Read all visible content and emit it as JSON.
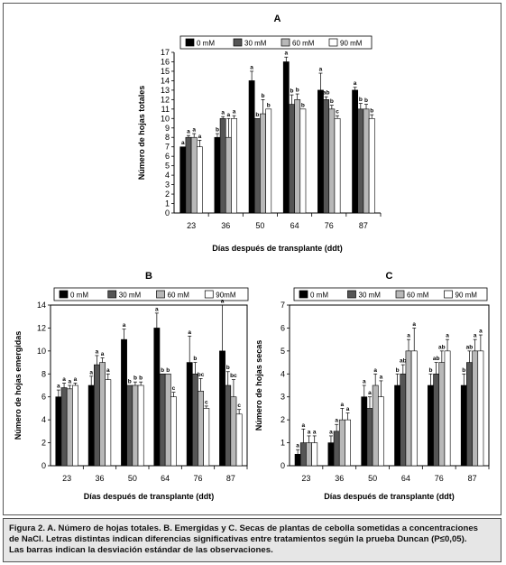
{
  "colors": {
    "s0": "#000000",
    "s1": "#555555",
    "s2": "#b8b8b8",
    "s3": "#ffffff",
    "axis": "#000000",
    "caption_bg": "#e6e6e6"
  },
  "caption": {
    "line1": "Figura 2.  A. Número de hojas totales. B. Emergidas y C. Secas de plantas de cebolla sometidas a concentraciones",
    "line2": "de NaCl. Letras distintas indican diferencias significativas entre tratamientos según la prueba Duncan (P≤0,05).",
    "line3": "Las barras indican la desviación estándar de las observaciones."
  },
  "chart_data": [
    {
      "panel": "A",
      "type": "bar",
      "xlabel": "Días después de transplante (ddt)",
      "ylabel": "Número de hojas totales",
      "categories": [
        "23",
        "36",
        "50",
        "64",
        "76",
        "87"
      ],
      "ylim": [
        0,
        17
      ],
      "yticks": [
        0,
        1,
        2,
        3,
        4,
        5,
        6,
        7,
        8,
        9,
        10,
        11,
        12,
        13,
        14,
        15,
        16,
        17
      ],
      "legend_position": "top",
      "series": [
        {
          "name": "0 mM",
          "values": [
            7,
            8,
            14,
            16,
            13,
            13
          ],
          "errors": [
            0,
            0.4,
            1,
            0.5,
            1.8,
            0.3
          ],
          "letters": [
            "a",
            "b",
            "a",
            "a",
            "a",
            "a"
          ]
        },
        {
          "name": "30 mM",
          "values": [
            8,
            10,
            10,
            11.5,
            12,
            11
          ],
          "errors": [
            0.2,
            0.2,
            0,
            1,
            0.3,
            0.6
          ],
          "letters": [
            "a",
            "a",
            "b",
            "b",
            "ab",
            "b"
          ]
        },
        {
          "name": "60 mM",
          "values": [
            8,
            8,
            10.5,
            12,
            11,
            11
          ],
          "errors": [
            0.4,
            2,
            1.5,
            0.6,
            0.4,
            0.5
          ],
          "letters": [
            "a",
            "a",
            "b",
            "b",
            "b",
            "b"
          ]
        },
        {
          "name": "90 mM",
          "values": [
            7,
            10,
            11,
            11,
            10,
            10
          ],
          "errors": [
            0.7,
            0.3,
            0,
            0,
            0.3,
            0.4
          ],
          "letters": [
            "a",
            "a",
            "b",
            "b",
            "c",
            "b"
          ]
        }
      ]
    },
    {
      "panel": "B",
      "type": "bar",
      "xlabel": "Días después de transplante (ddt)",
      "ylabel": "Número de hojas emergidas",
      "categories": [
        "23",
        "36",
        "50",
        "64",
        "76",
        "87"
      ],
      "ylim": [
        0,
        14
      ],
      "yticks": [
        0,
        2,
        4,
        6,
        8,
        10,
        12,
        14
      ],
      "legend_position": "top",
      "series": [
        {
          "name": "0 mM",
          "values": [
            6,
            7,
            11,
            12,
            9,
            10
          ],
          "errors": [
            0.6,
            0.8,
            0.9,
            1.3,
            2.3,
            4
          ],
          "letters": [
            "a",
            "a",
            "a",
            "a",
            "a",
            "a"
          ]
        },
        {
          "name": "30 mM",
          "values": [
            6.8,
            8.8,
            7,
            8,
            8,
            7
          ],
          "errors": [
            0.4,
            0.8,
            0,
            0,
            1,
            1.2
          ],
          "letters": [
            "a",
            "a",
            "b",
            "b",
            "b",
            "b"
          ]
        },
        {
          "name": "60 mM",
          "values": [
            6.7,
            9,
            7,
            8,
            6.5,
            6
          ],
          "errors": [
            0.3,
            0.4,
            0.3,
            0,
            1.1,
            1.5
          ],
          "letters": [
            "a",
            "a",
            "b",
            "b",
            "bc",
            "bc"
          ]
        },
        {
          "name": "90mM",
          "values": [
            7,
            7.5,
            7,
            6,
            5,
            4.5
          ],
          "errors": [
            0.2,
            0.5,
            0.3,
            0.4,
            0.2,
            0.4
          ],
          "letters": [
            "a",
            "a",
            "b",
            "c",
            "c",
            "c"
          ]
        }
      ]
    },
    {
      "panel": "C",
      "type": "bar",
      "xlabel": "Días después de transplante (ddt)",
      "ylabel": "Número de hojas secas",
      "categories": [
        "23",
        "36",
        "50",
        "64",
        "76",
        "87"
      ],
      "ylim": [
        0,
        7
      ],
      "yticks": [
        0,
        1,
        2,
        3,
        4,
        5,
        6,
        7
      ],
      "legend_position": "top",
      "series": [
        {
          "name": "0 mM",
          "values": [
            0.5,
            1,
            3,
            3.5,
            3.5,
            3.5
          ],
          "errors": [
            0.2,
            0.3,
            0.5,
            0.5,
            0.5,
            0.5
          ],
          "letters": [
            "a",
            "a",
            "a",
            "b",
            "b",
            "b"
          ]
        },
        {
          "name": "30 mM",
          "values": [
            1,
            1.5,
            2.5,
            4,
            4,
            4.5
          ],
          "errors": [
            0.6,
            0.3,
            0.5,
            0.4,
            0.5,
            0.5
          ],
          "letters": [
            "a",
            "a",
            "a",
            "ab",
            "ab",
            "ab"
          ]
        },
        {
          "name": "60 mM",
          "values": [
            1,
            2,
            3.5,
            5,
            4.5,
            5
          ],
          "errors": [
            0.3,
            0.5,
            0.5,
            0.5,
            0.5,
            0.5
          ],
          "letters": [
            "a",
            "a",
            "a",
            "a",
            "ab",
            "a"
          ]
        },
        {
          "name": "90 mM",
          "values": [
            1,
            2,
            3,
            5,
            5,
            5
          ],
          "errors": [
            0.3,
            0.3,
            0.7,
            1,
            0.5,
            0.7
          ],
          "letters": [
            "a",
            "a",
            "a",
            "a",
            "a",
            "a"
          ]
        }
      ]
    }
  ]
}
